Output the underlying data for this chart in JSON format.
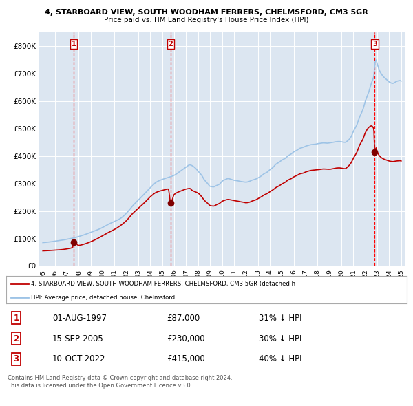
{
  "title": "4, STARBOARD VIEW, SOUTH WOODHAM FERRERS, CHELMSFORD, CM3 5GR",
  "subtitle": "Price paid vs. HM Land Registry's House Price Index (HPI)",
  "ylim": [
    0,
    850000
  ],
  "yticks": [
    0,
    100000,
    200000,
    300000,
    400000,
    500000,
    600000,
    700000,
    800000
  ],
  "ytick_labels": [
    "£0",
    "£100K",
    "£200K",
    "£300K",
    "£400K",
    "£500K",
    "£600K",
    "£700K",
    "£800K"
  ],
  "hpi_color": "#9dc3e6",
  "price_color": "#c00000",
  "plot_bg": "#dce6f1",
  "grid_color": "#ffffff",
  "sale_dates": [
    1997.583,
    2005.708,
    2022.792
  ],
  "sale_prices": [
    87000,
    230000,
    415000
  ],
  "sale_labels": [
    "1",
    "2",
    "3"
  ],
  "vline_color": "#ff0000",
  "marker_color": "#800000",
  "legend_line1": "4, STARBOARD VIEW, SOUTH WOODHAM FERRERS, CHELMSFORD, CM3 5GR (detached h",
  "legend_line2": "HPI: Average price, detached house, Chelmsford",
  "table_data": [
    [
      "1",
      "01-AUG-1997",
      "£87,000",
      "31% ↓ HPI"
    ],
    [
      "2",
      "15-SEP-2005",
      "£230,000",
      "30% ↓ HPI"
    ],
    [
      "3",
      "10-OCT-2022",
      "£415,000",
      "40% ↓ HPI"
    ]
  ],
  "footnote": "Contains HM Land Registry data © Crown copyright and database right 2024.\nThis data is licensed under the Open Government Licence v3.0.",
  "xlim": [
    1994.7,
    2025.3
  ],
  "xticks": [
    1995,
    1996,
    1997,
    1998,
    1999,
    2000,
    2001,
    2002,
    2003,
    2004,
    2005,
    2006,
    2007,
    2008,
    2009,
    2010,
    2011,
    2012,
    2013,
    2014,
    2015,
    2016,
    2017,
    2018,
    2019,
    2020,
    2021,
    2022,
    2023,
    2024,
    2025
  ]
}
